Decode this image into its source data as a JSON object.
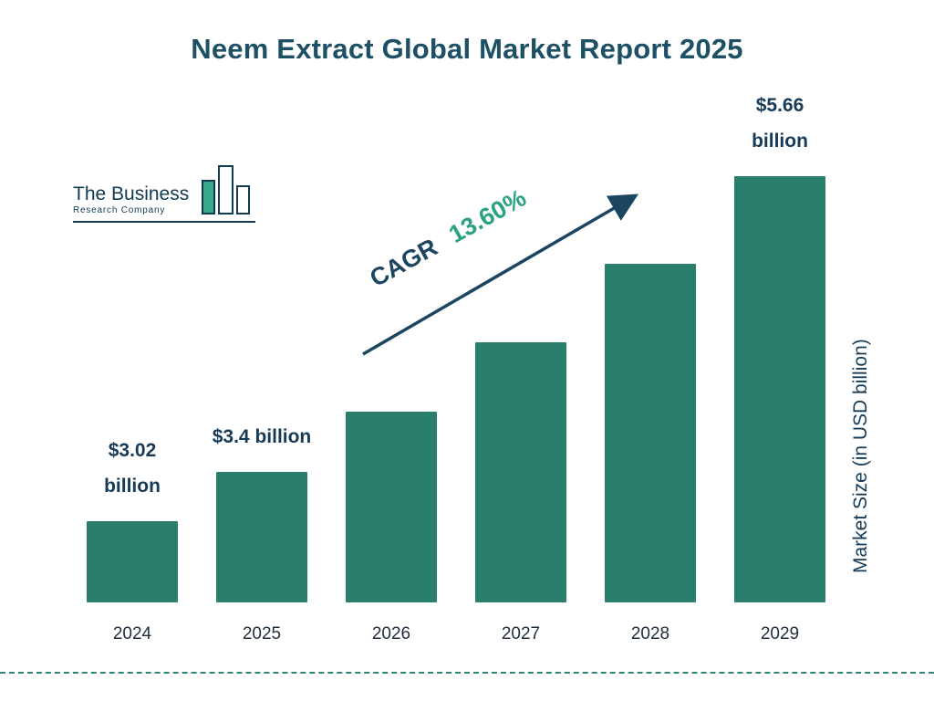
{
  "title": "Neem Extract Global Market Report 2025",
  "logo": {
    "line1": "The Business",
    "line2": "Research Company"
  },
  "cagr": {
    "prefix": "CAGR",
    "value": "13.60%"
  },
  "y_axis_label": "Market Size (in USD billion)",
  "chart_data": {
    "type": "bar",
    "title": "Neem Extract Global Market Report 2025",
    "categories": [
      "2024",
      "2025",
      "2026",
      "2027",
      "2028",
      "2029"
    ],
    "values": [
      3.02,
      3.4,
      3.86,
      4.39,
      4.99,
      5.66
    ],
    "value_labels": [
      "$3.02 billion",
      "$3.4 billion",
      "",
      "",
      "",
      "$5.66 billion"
    ],
    "xlabel": "",
    "ylabel": "Market Size (in USD billion)",
    "ylim": [
      2.4,
      5.75
    ],
    "grid": false,
    "legend": false,
    "bar_color": "#2a7e6c",
    "annotation": "CAGR 13.60%",
    "annotation_color": "#2aa183",
    "accent_navy": "#173a56"
  }
}
